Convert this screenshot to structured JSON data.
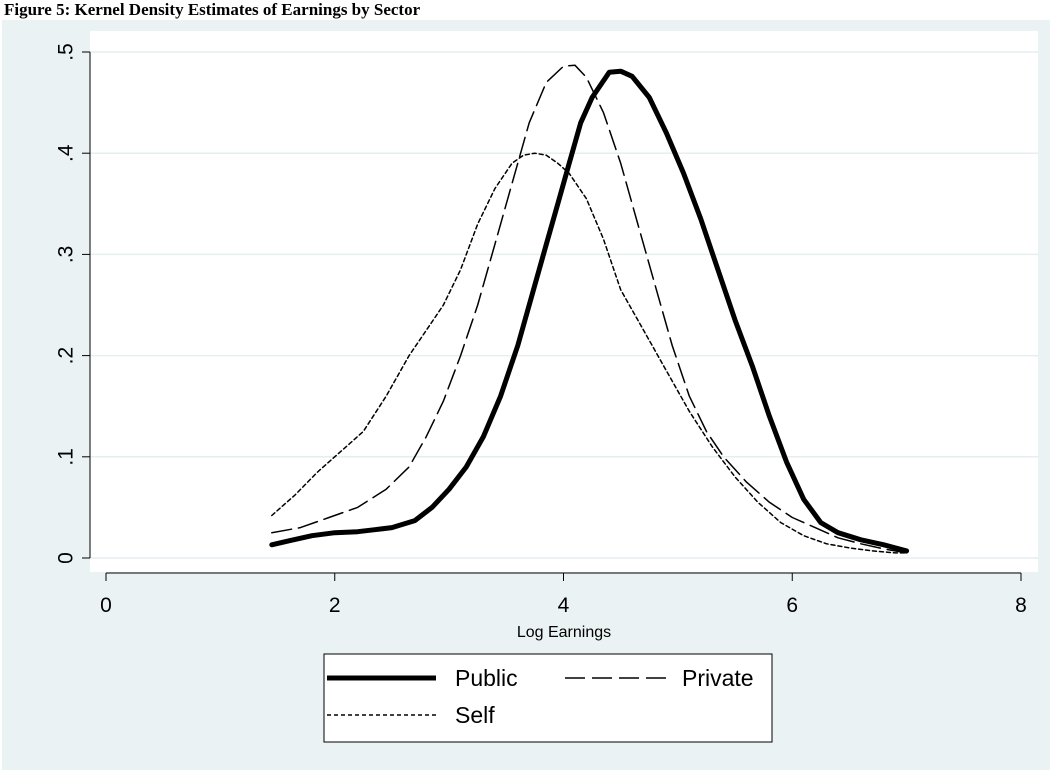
{
  "header": {
    "title": "Figure 5: Kernel Density Estimates of Earnings by Sector"
  },
  "chart_data": {
    "type": "line",
    "title": "",
    "xlabel": "Log Earnings",
    "ylabel": "",
    "xlim": [
      0,
      8
    ],
    "ylim": [
      0,
      0.5
    ],
    "x_ticks": [
      0,
      2,
      4,
      6,
      8
    ],
    "x_tick_labels": [
      "0",
      "2",
      "4",
      "6",
      "8"
    ],
    "y_ticks": [
      0,
      0.1,
      0.2,
      0.3,
      0.4,
      0.5
    ],
    "y_tick_labels": [
      "0",
      ".1",
      ".2",
      ".3",
      ".4",
      ".5"
    ],
    "grid": "horizontal",
    "legend_position": "bottom",
    "series": [
      {
        "name": "Public",
        "style": "thick-solid",
        "color": "#000000",
        "x": [
          1.45,
          1.6,
          1.8,
          2.0,
          2.2,
          2.35,
          2.5,
          2.7,
          2.85,
          3.0,
          3.15,
          3.3,
          3.45,
          3.6,
          3.75,
          3.85,
          3.95,
          4.05,
          4.15,
          4.25,
          4.4,
          4.5,
          4.6,
          4.75,
          4.9,
          5.05,
          5.2,
          5.35,
          5.5,
          5.65,
          5.8,
          5.95,
          6.1,
          6.25,
          6.4,
          6.6,
          6.8,
          7.0
        ],
        "y": [
          0.013,
          0.017,
          0.022,
          0.025,
          0.026,
          0.028,
          0.03,
          0.037,
          0.05,
          0.068,
          0.09,
          0.12,
          0.16,
          0.21,
          0.27,
          0.31,
          0.35,
          0.39,
          0.43,
          0.455,
          0.48,
          0.481,
          0.476,
          0.455,
          0.42,
          0.38,
          0.335,
          0.285,
          0.235,
          0.19,
          0.14,
          0.095,
          0.058,
          0.035,
          0.025,
          0.018,
          0.013,
          0.007
        ]
      },
      {
        "name": "Private",
        "style": "long-dash",
        "color": "#000000",
        "x": [
          1.45,
          1.7,
          1.95,
          2.2,
          2.45,
          2.65,
          2.8,
          2.95,
          3.1,
          3.25,
          3.4,
          3.55,
          3.7,
          3.85,
          4.0,
          4.1,
          4.2,
          4.35,
          4.5,
          4.65,
          4.8,
          4.95,
          5.1,
          5.25,
          5.4,
          5.6,
          5.8,
          6.0,
          6.2,
          6.4,
          6.6,
          6.8,
          7.0
        ],
        "y": [
          0.025,
          0.03,
          0.04,
          0.05,
          0.068,
          0.09,
          0.12,
          0.155,
          0.2,
          0.25,
          0.31,
          0.37,
          0.43,
          0.47,
          0.486,
          0.487,
          0.475,
          0.44,
          0.39,
          0.33,
          0.27,
          0.21,
          0.16,
          0.125,
          0.1,
          0.075,
          0.055,
          0.04,
          0.03,
          0.02,
          0.014,
          0.009,
          0.005
        ]
      },
      {
        "name": "Self",
        "style": "short-dash",
        "color": "#000000",
        "x": [
          1.45,
          1.65,
          1.85,
          2.05,
          2.25,
          2.45,
          2.65,
          2.8,
          2.95,
          3.1,
          3.25,
          3.4,
          3.55,
          3.65,
          3.75,
          3.85,
          3.95,
          4.05,
          4.2,
          4.35,
          4.5,
          4.7,
          4.9,
          5.1,
          5.3,
          5.5,
          5.7,
          5.9,
          6.1,
          6.3,
          6.5,
          6.7,
          6.9,
          7.0
        ],
        "y": [
          0.042,
          0.062,
          0.085,
          0.105,
          0.125,
          0.16,
          0.2,
          0.225,
          0.25,
          0.285,
          0.33,
          0.365,
          0.39,
          0.398,
          0.4,
          0.398,
          0.39,
          0.38,
          0.355,
          0.315,
          0.265,
          0.225,
          0.185,
          0.145,
          0.11,
          0.08,
          0.055,
          0.035,
          0.022,
          0.014,
          0.01,
          0.007,
          0.005,
          0.005
        ]
      }
    ]
  }
}
